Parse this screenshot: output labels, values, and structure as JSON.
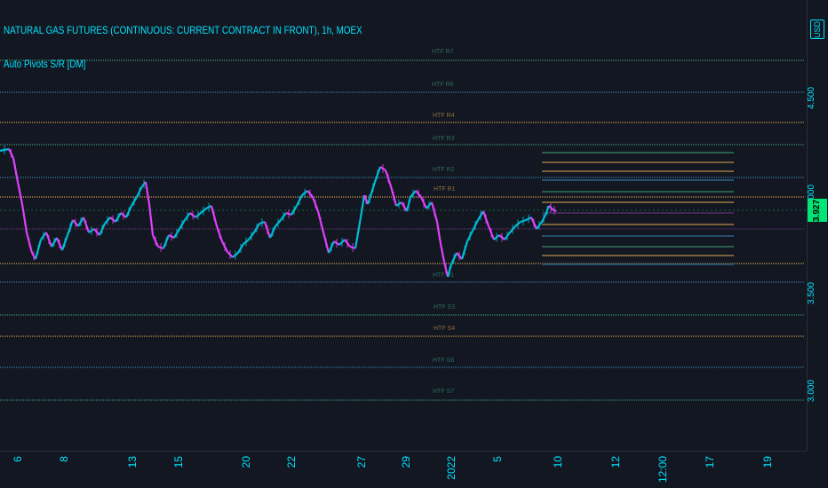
{
  "header": {
    "symbol_title": "NATURAL GAS FUTURES (CONTINUOUS: CURRENT CONTRACT IN FRONT), 1h, MOEX",
    "indicator_title": "Auto Pivots S/R [DM]"
  },
  "price_scale": {
    "currency": "USD",
    "ticks": [
      "4.500",
      "4.000",
      "3.500",
      "3.000"
    ],
    "last_price": "3.927",
    "last_price_color": "#00e676"
  },
  "time_scale": {
    "ticks": [
      "6",
      "8",
      "13",
      "15",
      "20",
      "22",
      "27",
      "29",
      "2022",
      "5",
      "10",
      "12",
      "12:00",
      "17",
      "19"
    ]
  },
  "pivot_labels": [
    "HTF R7",
    "HTF R6",
    "HTF R4",
    "HTF R3",
    "HTF R2",
    "HTF R1",
    "HTF S1",
    "HTF S3",
    "HTF S4",
    "HTF S6",
    "HTF S7"
  ],
  "colors": {
    "background": "#131722",
    "up_candle": "#00bcd4",
    "down_candle": "#e040fb",
    "accent": "#00e5ff",
    "pivot_orange": "#8d6e3f",
    "pivot_blue": "#2a5a7a",
    "pivot_green": "#2e6b55"
  }
}
